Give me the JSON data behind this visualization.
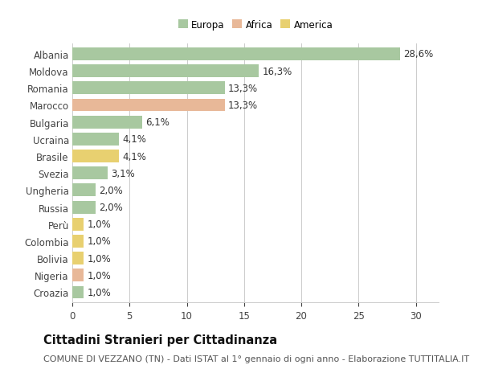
{
  "categories": [
    "Albania",
    "Moldova",
    "Romania",
    "Marocco",
    "Bulgaria",
    "Ucraina",
    "Brasile",
    "Svezia",
    "Ungheria",
    "Russia",
    "Perù",
    "Colombia",
    "Bolivia",
    "Nigeria",
    "Croazia"
  ],
  "values": [
    28.6,
    16.3,
    13.3,
    13.3,
    6.1,
    4.1,
    4.1,
    3.1,
    2.0,
    2.0,
    1.0,
    1.0,
    1.0,
    1.0,
    1.0
  ],
  "labels": [
    "28,6%",
    "16,3%",
    "13,3%",
    "13,3%",
    "6,1%",
    "4,1%",
    "4,1%",
    "3,1%",
    "2,0%",
    "2,0%",
    "1,0%",
    "1,0%",
    "1,0%",
    "1,0%",
    "1,0%"
  ],
  "colors": [
    "#a8c8a0",
    "#a8c8a0",
    "#a8c8a0",
    "#e8b898",
    "#a8c8a0",
    "#a8c8a0",
    "#e8d070",
    "#a8c8a0",
    "#a8c8a0",
    "#a8c8a0",
    "#e8d070",
    "#e8d070",
    "#e8d070",
    "#e8b898",
    "#a8c8a0"
  ],
  "legend_labels": [
    "Europa",
    "Africa",
    "America"
  ],
  "legend_colors": [
    "#a8c8a0",
    "#e8b898",
    "#e8d070"
  ],
  "xlim": [
    0,
    32
  ],
  "xticks": [
    0,
    5,
    10,
    15,
    20,
    25,
    30
  ],
  "title": "Cittadini Stranieri per Cittadinanza",
  "subtitle": "COMUNE DI VEZZANO (TN) - Dati ISTAT al 1° gennaio di ogni anno - Elaborazione TUTTITALIA.IT",
  "background_color": "#ffffff",
  "bar_height": 0.75,
  "grid_color": "#cccccc",
  "label_fontsize": 8.5,
  "tick_fontsize": 8.5,
  "title_fontsize": 10.5,
  "subtitle_fontsize": 8
}
